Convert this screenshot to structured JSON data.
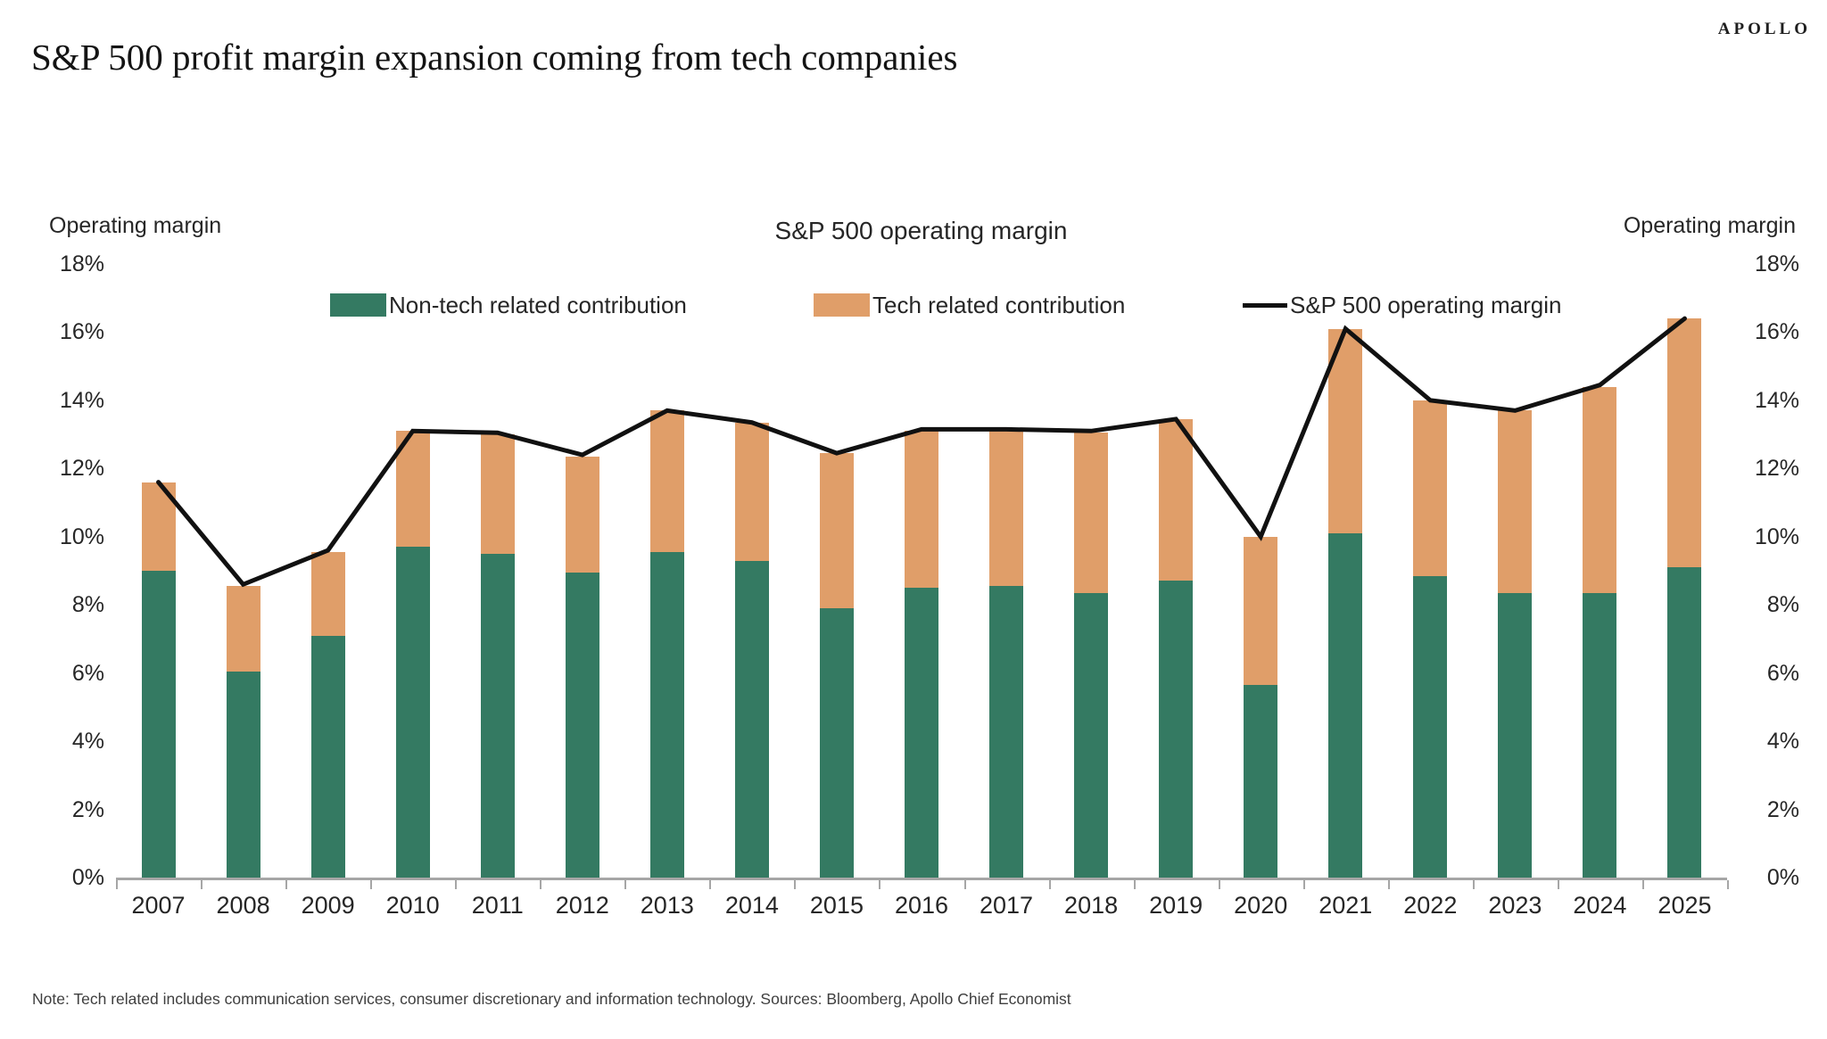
{
  "header": {
    "title": "S&P 500 profit margin expansion coming from tech companies",
    "brand": "APOLLO"
  },
  "note": "Note: Tech related includes communication services, consumer discretionary and information technology. Sources: Bloomberg, Apollo Chief Economist",
  "chart_data": {
    "type": "bar",
    "subtype": "stacked-bars-with-line-overlay",
    "title": "S&P 500 operating margin",
    "left_axis_title": "Operating margin",
    "right_axis_title": "Operating margin",
    "xlabel": "",
    "ylabel": "Operating margin",
    "ylim": [
      0,
      18
    ],
    "yticks": [
      0,
      2,
      4,
      6,
      8,
      10,
      12,
      14,
      16,
      18
    ],
    "ytick_suffix": "%",
    "grid": false,
    "legend_position": "top",
    "categories": [
      "2007",
      "2008",
      "2009",
      "2010",
      "2011",
      "2012",
      "2013",
      "2014",
      "2015",
      "2016",
      "2017",
      "2018",
      "2019",
      "2020",
      "2021",
      "2022",
      "2023",
      "2024",
      "2025"
    ],
    "series": [
      {
        "name": "Non-tech related contribution",
        "type": "bar",
        "color": "#347A62",
        "values": [
          9.0,
          6.05,
          7.1,
          9.7,
          9.5,
          8.95,
          9.55,
          9.3,
          7.9,
          8.5,
          8.55,
          8.35,
          8.7,
          5.65,
          10.1,
          8.85,
          8.35,
          8.35,
          9.1
        ]
      },
      {
        "name": "Tech related contribution",
        "type": "bar",
        "color": "#E09E69",
        "values": [
          2.6,
          2.5,
          2.45,
          3.4,
          3.5,
          3.4,
          4.15,
          4.05,
          4.55,
          4.6,
          4.55,
          4.7,
          4.75,
          4.35,
          6.0,
          5.15,
          5.35,
          6.05,
          7.3
        ]
      },
      {
        "name": "S&P 500 operating margin",
        "type": "line",
        "color": "#111111",
        "values": [
          11.6,
          8.6,
          9.6,
          13.1,
          13.05,
          12.4,
          13.7,
          13.35,
          12.45,
          13.15,
          13.15,
          13.1,
          13.45,
          10.0,
          16.1,
          14.0,
          13.7,
          14.45,
          16.4
        ]
      }
    ],
    "axis_color": "#a6a6a6"
  }
}
